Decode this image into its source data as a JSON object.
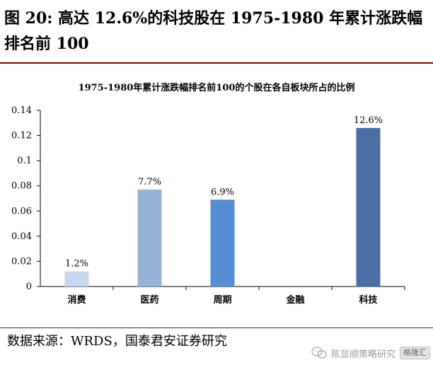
{
  "figure": {
    "title": "图 20: 高达 12.6%的科技股在 1975-1980 年累计涨跌幅排名前 100",
    "source": "数据来源：WRDS，国泰君安证券研究",
    "watermark": "陈显顺策略研究",
    "watermark_badge": "格隆汇"
  },
  "chart_data": {
    "type": "bar",
    "title": "1975-1980年累计涨跌幅排名前100的个股在各自板块所占的比例",
    "categories": [
      "消费",
      "医药",
      "周期",
      "金融",
      "科技"
    ],
    "values": [
      0.012,
      0.077,
      0.069,
      0,
      0.126
    ],
    "data_labels": [
      "1.2%",
      "7.7%",
      "6.9%",
      "",
      "12.6%"
    ],
    "bar_colors": [
      "#c6d9f1",
      "#95b3d7",
      "#558ed5",
      "#558ed5",
      "#4a6fa5"
    ],
    "ylim": [
      0,
      0.14
    ],
    "yticks": [
      "0",
      "0.02",
      "0.04",
      "0.06",
      "0.08",
      "0.1",
      "0.12",
      "0.14"
    ],
    "grid": false,
    "xlabel": "",
    "ylabel": ""
  }
}
